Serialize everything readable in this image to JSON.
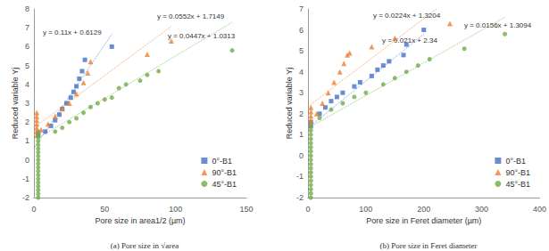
{
  "chart_data": [
    {
      "type": "scatter",
      "title": "(a) Pore size in √area",
      "x_label": "Pore size in area1/2 (µm)",
      "y_label": "Reduced variable Yj",
      "xlim": [
        0,
        150
      ],
      "xticks": [
        0,
        50,
        100,
        150
      ],
      "ylim": [
        -2,
        8
      ],
      "yticks": [
        -2,
        -1,
        0,
        1,
        2,
        3,
        4,
        5,
        6,
        7,
        8
      ],
      "grid": false,
      "legend": "lower right",
      "series": [
        {
          "name": "0°-B1",
          "color": "#4472c4",
          "marker": "square",
          "x": [
            3,
            3,
            8,
            12,
            15,
            18,
            20,
            23,
            26,
            28,
            30,
            32,
            34,
            36,
            55
          ],
          "values": [
            1.3,
            1.45,
            1.5,
            1.8,
            2.1,
            2.4,
            2.7,
            3.0,
            3.3,
            3.6,
            3.9,
            4.3,
            4.7,
            5.3,
            6.0
          ]
        },
        {
          "name": "90°-B1",
          "color": "#ed7d31",
          "marker": "triangle",
          "x": [
            2,
            2,
            2,
            2,
            2,
            2,
            2,
            5,
            10,
            15,
            20,
            25,
            30,
            35,
            38,
            40,
            80,
            97
          ],
          "values": [
            1.3,
            1.5,
            1.7,
            1.9,
            2.1,
            2.3,
            2.5,
            1.6,
            1.9,
            2.3,
            2.7,
            3.0,
            3.5,
            4.1,
            4.6,
            5.2,
            5.6,
            6.3
          ]
        },
        {
          "name": "45°-B1",
          "color": "#70ad47",
          "marker": "circle",
          "x": [
            3,
            3,
            3,
            3,
            3,
            3,
            3,
            3,
            3,
            3,
            3,
            3,
            3,
            3,
            3,
            3,
            3,
            3,
            15,
            20,
            25,
            30,
            35,
            40,
            45,
            50,
            55,
            60,
            65,
            75,
            80,
            88,
            140
          ],
          "values": [
            -2.0,
            -1.8,
            -1.6,
            -1.4,
            -1.2,
            -1.0,
            -0.8,
            -0.6,
            -0.4,
            -0.2,
            0.0,
            0.2,
            0.4,
            0.6,
            0.8,
            1.0,
            1.2,
            1.4,
            1.5,
            1.7,
            2.0,
            2.2,
            2.5,
            2.8,
            3.0,
            3.2,
            3.3,
            3.8,
            4.0,
            4.2,
            4.5,
            4.7,
            5.8
          ]
        }
      ],
      "trendlines": [
        {
          "label": "y = 0.11x + 0.6129",
          "color": "#4472c4",
          "line_style": "dotted",
          "x": [
            0,
            55
          ],
          "values": [
            0.61,
            6.66
          ]
        },
        {
          "label": "y = 0.0552x + 1.7149",
          "color": "#ed7d31",
          "line_style": "dotted",
          "x": [
            0,
            97
          ],
          "values": [
            1.71,
            7.07
          ]
        },
        {
          "label": "y = 0.0447x + 1.0313",
          "color": "#70ad47",
          "line_style": "dotted",
          "x": [
            0,
            140
          ],
          "values": [
            1.03,
            7.29
          ]
        }
      ]
    },
    {
      "type": "scatter",
      "title": "(b) Pore size in Feret diameter",
      "x_label": "Pore size in Feret diameter (µm)",
      "y_label": "Reduced variable Yj",
      "xlim": [
        0,
        400
      ],
      "xticks": [
        0,
        100,
        200,
        300,
        400
      ],
      "ylim": [
        -2,
        7
      ],
      "yticks": [
        -2,
        -1,
        0,
        1,
        2,
        3,
        4,
        5,
        6,
        7
      ],
      "grid": false,
      "legend": "lower right",
      "series": [
        {
          "name": "0°-B1",
          "color": "#4472c4",
          "marker": "square",
          "x": [
            5,
            5,
            20,
            30,
            40,
            50,
            60,
            80,
            90,
            110,
            120,
            130,
            140,
            165,
            170,
            200
          ],
          "values": [
            1.4,
            1.6,
            2.0,
            2.3,
            2.6,
            2.8,
            3.0,
            3.3,
            3.5,
            3.8,
            4.1,
            4.3,
            4.5,
            4.8,
            5.3,
            6.0
          ]
        },
        {
          "name": "90°-B1",
          "color": "#ed7d31",
          "marker": "triangle",
          "x": [
            5,
            5,
            5,
            5,
            5,
            15,
            25,
            35,
            45,
            55,
            62,
            68,
            72,
            110,
            150,
            245
          ],
          "values": [
            1.5,
            1.7,
            1.9,
            2.1,
            2.3,
            2.0,
            2.5,
            3.0,
            3.5,
            4.0,
            4.4,
            4.8,
            4.9,
            5.2,
            5.6,
            6.3
          ]
        },
        {
          "name": "45°-B1",
          "color": "#70ad47",
          "marker": "circle",
          "x": [
            5,
            5,
            5,
            5,
            5,
            5,
            5,
            5,
            5,
            5,
            5,
            5,
            5,
            5,
            5,
            5,
            5,
            5,
            20,
            40,
            60,
            80,
            100,
            130,
            150,
            170,
            190,
            210,
            270,
            340
          ],
          "values": [
            -2.0,
            -1.8,
            -1.6,
            -1.4,
            -1.2,
            -1.0,
            -0.8,
            -0.6,
            -0.4,
            -0.2,
            0.0,
            0.2,
            0.4,
            0.6,
            0.8,
            1.0,
            1.2,
            1.4,
            1.8,
            2.2,
            2.5,
            2.8,
            3.0,
            3.4,
            3.7,
            4.0,
            4.3,
            4.6,
            5.1,
            5.8
          ]
        }
      ],
      "trendlines": [
        {
          "label": "y = 0.0224x + 1.3204",
          "color": "#4472c4",
          "line_style": "dotted",
          "x": [
            0,
            200
          ],
          "values": [
            1.32,
            5.8
          ]
        },
        {
          "label": "y = 0.021x + 2.34",
          "color": "#ed7d31",
          "line_style": "dotted",
          "x": [
            0,
            222
          ],
          "values": [
            2.34,
            7.0
          ]
        },
        {
          "label": "y = 0.0156x + 1.3094",
          "color": "#70ad47",
          "line_style": "dotted",
          "x": [
            0,
            340
          ],
          "values": [
            1.31,
            6.61
          ]
        }
      ]
    }
  ]
}
